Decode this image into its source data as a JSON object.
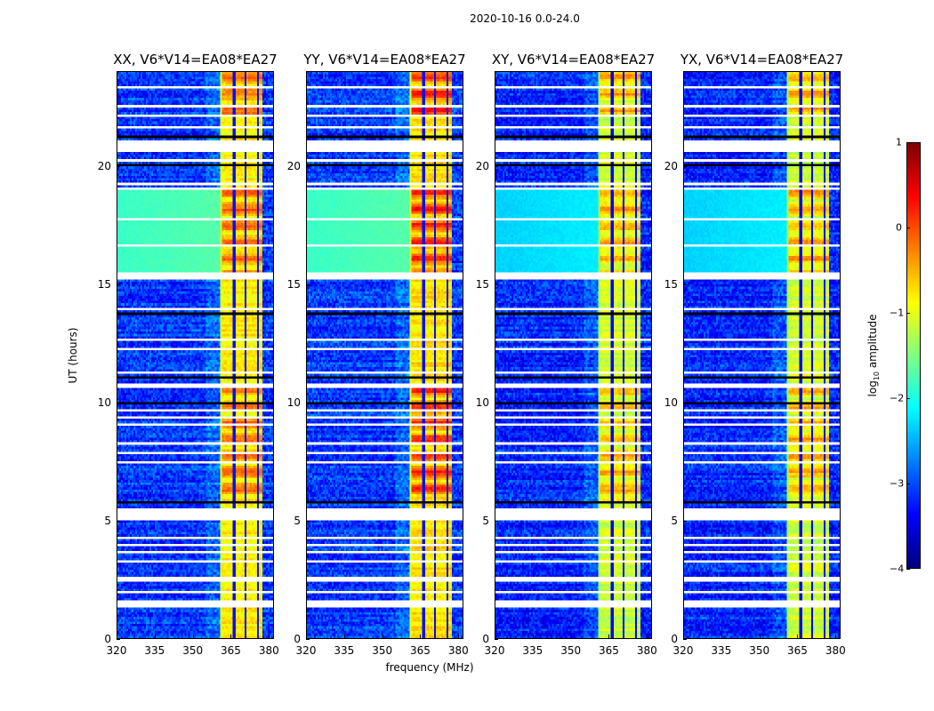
{
  "figure": {
    "suptitle": "2020-10-16 0.0-24.0",
    "xlabel": "frequency (MHz)",
    "ylabel": "UT (hours)",
    "colorbar_label_main": "log",
    "colorbar_label_sub": "10",
    "colorbar_label_rest": " amplitude"
  },
  "chart_data": {
    "type": "heatmap",
    "title": "2020-10-16 0.0-24.0",
    "xlabel": "frequency (MHz)",
    "ylabel": "UT (hours)",
    "xlim": [
      320,
      382
    ],
    "ylim": [
      0,
      24
    ],
    "xticks": [
      320,
      335,
      350,
      365,
      380
    ],
    "yticks": [
      0,
      5,
      10,
      15,
      20
    ],
    "colormap": "jet",
    "colorbar": {
      "label": "log10 amplitude",
      "range": [
        -4,
        1
      ],
      "ticks": [
        1,
        0,
        -1,
        -2,
        -3,
        -4
      ]
    },
    "band": {
      "start_mhz": 361,
      "end_mhz": 378,
      "dark_lines_mhz": [
        366.5,
        371.2,
        376.0
      ]
    },
    "bright_interval_hours": [
      15.2,
      19.0
    ],
    "panels": [
      {
        "name": "XX",
        "title": "XX, V6*V14=EA08*EA27",
        "bg_level": -3.1,
        "bright_level": -1.85,
        "band_level": -0.8,
        "band_peak": -0.1
      },
      {
        "name": "YY",
        "title": "YY, V6*V14=EA08*EA27",
        "bg_level": -3.1,
        "bright_level": -1.85,
        "band_level": -0.75,
        "band_peak": 0.25
      },
      {
        "name": "XY",
        "title": "XY, V6*V14=EA08*EA27",
        "bg_level": -3.2,
        "bright_level": -2.35,
        "band_level": -1.1,
        "band_peak": -0.4
      },
      {
        "name": "YX",
        "title": "YX, V6*V14=EA08*EA27",
        "bg_level": -3.2,
        "bright_level": -2.35,
        "band_level": -1.1,
        "band_peak": -0.4
      }
    ],
    "flagged_gaps_hours": [
      [
        0.35,
        0.42
      ],
      [
        1.3,
        1.6
      ],
      [
        1.95,
        2.0
      ],
      [
        2.4,
        2.55
      ],
      [
        2.95,
        3.0
      ],
      [
        3.15,
        3.25
      ],
      [
        3.6,
        3.65
      ],
      [
        3.9,
        3.95
      ],
      [
        4.2,
        4.25
      ],
      [
        4.5,
        4.55
      ],
      [
        5.0,
        5.5
      ],
      [
        9.3,
        9.35
      ],
      [
        9.6,
        9.65
      ],
      [
        9.0,
        9.05
      ],
      [
        8.6,
        8.65
      ],
      [
        8.2,
        8.25
      ],
      [
        7.8,
        7.85
      ],
      [
        7.4,
        7.45
      ],
      [
        6.5,
        6.55
      ],
      [
        10.6,
        10.8
      ],
      [
        11.2,
        11.25
      ],
      [
        11.8,
        11.85
      ],
      [
        12.2,
        12.25
      ],
      [
        12.6,
        12.65
      ],
      [
        13.3,
        13.35
      ],
      [
        13.9,
        13.95
      ],
      [
        14.4,
        14.45
      ],
      [
        15.15,
        15.25
      ],
      [
        15.35,
        15.45
      ],
      [
        16.6,
        16.65
      ],
      [
        17.7,
        17.75
      ],
      [
        19.0,
        19.05
      ],
      [
        19.25,
        19.3
      ],
      [
        20.2,
        20.25
      ],
      [
        20.65,
        21.05
      ],
      [
        21.6,
        21.65
      ],
      [
        22.1,
        22.15
      ],
      [
        22.55,
        22.6
      ],
      [
        23.35,
        23.4
      ]
    ],
    "dark_rows_hours": [
      [
        0.0,
        0.02
      ],
      [
        1.2,
        1.22
      ],
      [
        3.3,
        3.32
      ],
      [
        4.1,
        4.12
      ],
      [
        4.7,
        4.72
      ],
      [
        5.55,
        5.58
      ],
      [
        5.75,
        5.78
      ],
      [
        9.7,
        9.72
      ],
      [
        9.95,
        9.98
      ],
      [
        10.9,
        10.92
      ],
      [
        11.05,
        11.07
      ],
      [
        11.5,
        11.52
      ],
      [
        12.0,
        12.02
      ],
      [
        12.4,
        12.42
      ],
      [
        12.8,
        12.82
      ],
      [
        13.0,
        13.02
      ],
      [
        13.5,
        13.52
      ],
      [
        13.75,
        13.77
      ],
      [
        14.1,
        14.12
      ],
      [
        14.6,
        14.62
      ],
      [
        14.8,
        14.82
      ],
      [
        20.05,
        20.08
      ],
      [
        20.5,
        20.53
      ],
      [
        21.25,
        21.28
      ],
      [
        22.9,
        22.93
      ],
      [
        23.1,
        23.13
      ]
    ]
  }
}
